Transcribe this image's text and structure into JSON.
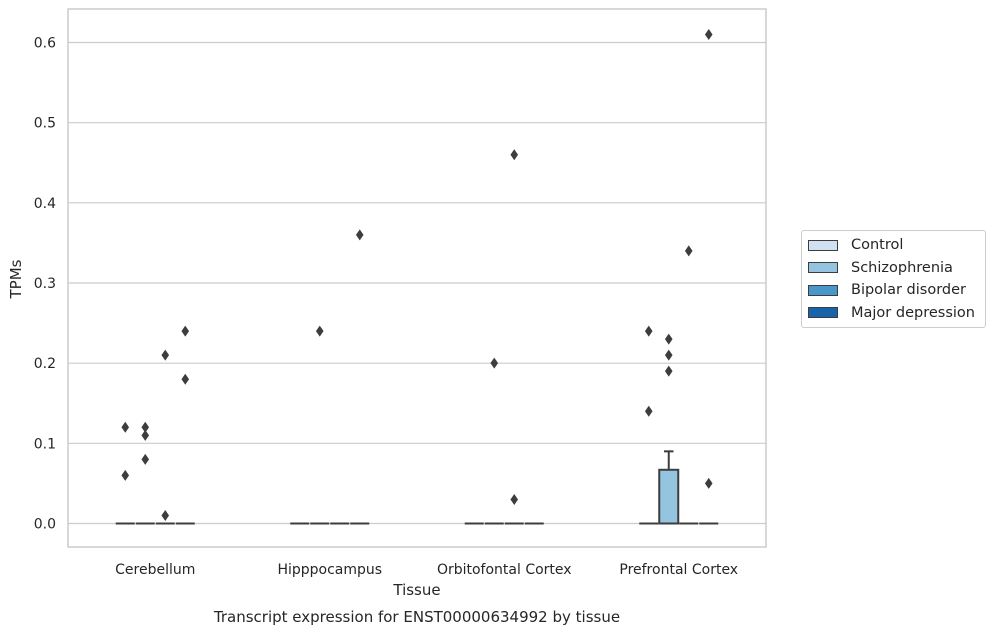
{
  "chart_data": {
    "type": "box",
    "title": "Transcript expression for ENST00000634992 by tissue",
    "xlabel": "Tissue",
    "ylabel": "TPMs",
    "categories": [
      "Cerebellum",
      "Hipppocampus",
      "Orbitofontal Cortex",
      "Prefrontal Cortex"
    ],
    "ylim": [
      -0.03,
      0.64
    ],
    "yticks": [
      0.0,
      0.1,
      0.2,
      0.3,
      0.4,
      0.5,
      0.6
    ],
    "ytick_labels": [
      "0.0",
      "0.1",
      "0.2",
      "0.3",
      "0.4",
      "0.5",
      "0.6"
    ],
    "grid": true,
    "legend": {
      "placement": "right",
      "entries": [
        {
          "name": "Control",
          "color": "#d0e1f2"
        },
        {
          "name": "Schizophrenia",
          "color": "#94c4df"
        },
        {
          "name": "Bipolar disorder",
          "color": "#4a98c9"
        },
        {
          "name": "Major depression",
          "color": "#1764ab"
        }
      ]
    },
    "series": [
      {
        "name": "Control",
        "boxes": [
          {
            "q1": 0,
            "median": 0,
            "q3": 0,
            "whislo": 0,
            "whishi": 0,
            "fliers": [
              0.06,
              0.12
            ]
          },
          {
            "q1": 0,
            "median": 0,
            "q3": 0,
            "whislo": 0,
            "whishi": 0,
            "fliers": []
          },
          {
            "q1": 0,
            "median": 0,
            "q3": 0,
            "whislo": 0,
            "whishi": 0,
            "fliers": []
          },
          {
            "q1": 0,
            "median": 0,
            "q3": 0,
            "whislo": 0,
            "whishi": 0,
            "fliers": [
              0.14,
              0.24
            ]
          }
        ]
      },
      {
        "name": "Schizophrenia",
        "boxes": [
          {
            "q1": 0,
            "median": 0,
            "q3": 0,
            "whislo": 0,
            "whishi": 0,
            "fliers": [
              0.08,
              0.11,
              0.12
            ]
          },
          {
            "q1": 0,
            "median": 0,
            "q3": 0,
            "whislo": 0,
            "whishi": 0,
            "fliers": [
              0.24
            ]
          },
          {
            "q1": 0,
            "median": 0,
            "q3": 0,
            "whislo": 0,
            "whishi": 0,
            "fliers": [
              0.2
            ]
          },
          {
            "q1": 0,
            "median": 0,
            "q3": 0.067,
            "whislo": 0,
            "whishi": 0.09,
            "fliers": [
              0.19,
              0.21,
              0.23
            ]
          }
        ]
      },
      {
        "name": "Bipolar disorder",
        "boxes": [
          {
            "q1": 0,
            "median": 0,
            "q3": 0,
            "whislo": 0,
            "whishi": 0,
            "fliers": [
              0.01,
              0.21
            ]
          },
          {
            "q1": 0,
            "median": 0,
            "q3": 0,
            "whislo": 0,
            "whishi": 0,
            "fliers": []
          },
          {
            "q1": 0,
            "median": 0,
            "q3": 0,
            "whislo": 0,
            "whishi": 0,
            "fliers": [
              0.03,
              0.46
            ]
          },
          {
            "q1": 0,
            "median": 0,
            "q3": 0,
            "whislo": 0,
            "whishi": 0,
            "fliers": [
              0.34
            ]
          }
        ]
      },
      {
        "name": "Major depression",
        "boxes": [
          {
            "q1": 0,
            "median": 0,
            "q3": 0,
            "whislo": 0,
            "whishi": 0,
            "fliers": [
              0.18,
              0.24
            ]
          },
          {
            "q1": 0,
            "median": 0,
            "q3": 0,
            "whislo": 0,
            "whishi": 0,
            "fliers": [
              0.36
            ]
          },
          {
            "q1": 0,
            "median": 0,
            "q3": 0,
            "whislo": 0,
            "whishi": 0,
            "fliers": []
          },
          {
            "q1": 0,
            "median": 0,
            "q3": 0,
            "whislo": 0,
            "whishi": 0,
            "fliers": [
              0.05,
              0.61
            ]
          }
        ]
      }
    ]
  }
}
